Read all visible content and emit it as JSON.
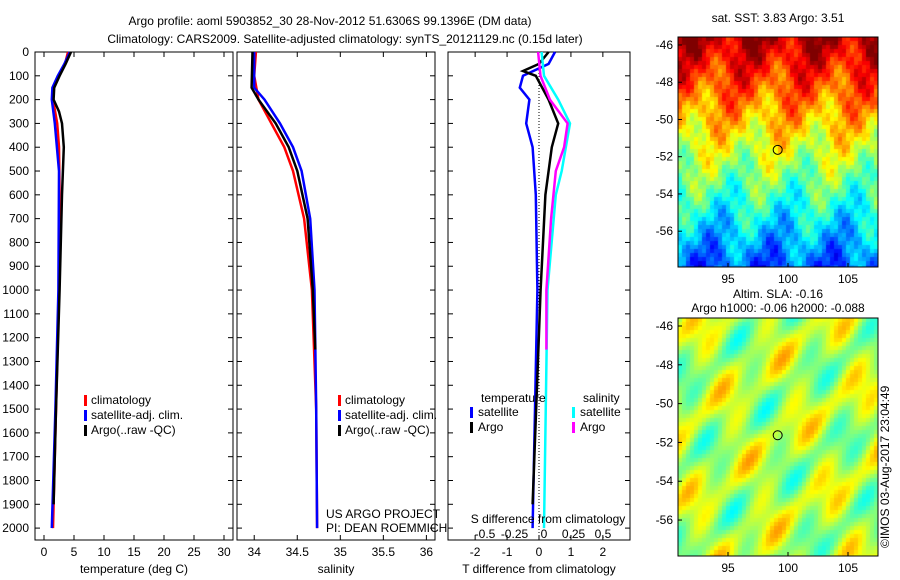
{
  "title_line1": "Argo profile: aoml 5903852_30 28-Nov-2012 51.6306S 99.1396E (DM data)",
  "title_line2": "Climatology: CARS2009. Satellite-adjusted climatology: synTS_20121129.nc (0.15d later)",
  "chart_data": [
    {
      "type": "line",
      "name": "temperature",
      "xlabel": "temperature (deg C)",
      "xlim": [
        -1.5,
        31.5
      ],
      "ylim": [
        0,
        2050
      ],
      "xticks": [
        "0",
        "5",
        "10",
        "15",
        "20",
        "25",
        "30"
      ],
      "yticks": [
        "0",
        "100",
        "200",
        "300",
        "400",
        "500",
        "600",
        "700",
        "800",
        "900",
        "1000",
        "1100",
        "1200",
        "1300",
        "1400",
        "1500",
        "1600",
        "1700",
        "1800",
        "1900",
        "2000"
      ],
      "legend": [
        "climatology",
        "satellite-adj. clim.",
        "Argo(..raw -QC)"
      ],
      "series": [
        {
          "name": "climatology",
          "color": "#ff0000",
          "depth": [
            0,
            50,
            100,
            150,
            200,
            300,
            400,
            600,
            1000,
            1500,
            2000
          ],
          "values": [
            4.0,
            3.5,
            2.5,
            1.6,
            1.5,
            2.2,
            2.5,
            2.6,
            2.5,
            2.0,
            1.5
          ]
        },
        {
          "name": "satellite-adj. clim.",
          "color": "#0000ff",
          "depth": [
            0,
            50,
            100,
            150,
            200,
            300,
            500,
            1000,
            1500,
            2000
          ],
          "values": [
            4.3,
            3.4,
            2.3,
            1.4,
            1.3,
            1.8,
            2.5,
            2.4,
            1.9,
            1.3
          ]
        },
        {
          "name": "Argo(..raw -QC)",
          "color": "#000000",
          "depth": [
            0,
            50,
            100,
            150,
            200,
            250,
            300,
            400,
            600,
            1000,
            1500,
            1900
          ],
          "values": [
            4.5,
            3.6,
            2.6,
            1.7,
            1.6,
            2.5,
            3.0,
            3.3,
            3.0,
            2.6,
            2.0,
            1.6
          ]
        }
      ]
    },
    {
      "type": "line",
      "name": "salinity",
      "xlabel": "salinity",
      "xlim": [
        33.8,
        36.1
      ],
      "ylim": [
        0,
        2050
      ],
      "xticks": [
        "34",
        "34.5",
        "35",
        "35.5",
        "36"
      ],
      "legend": [
        "climatology",
        "satellite-adj. clim.",
        "Argo(..raw -QC)"
      ],
      "annotation": [
        "US ARGO PROJECT",
        "PI: DEAN ROEMMICH"
      ],
      "series": [
        {
          "name": "climatology",
          "color": "#ff0000",
          "depth": [
            0,
            100,
            200,
            300,
            400,
            500,
            700,
            1000,
            1500,
            2000
          ],
          "values": [
            34.02,
            34.0,
            34.05,
            34.2,
            34.35,
            34.45,
            34.58,
            34.67,
            34.72,
            34.73
          ]
        },
        {
          "name": "satellite-adj. clim.",
          "color": "#0000ff",
          "depth": [
            0,
            150,
            200,
            300,
            400,
            500,
            700,
            1000,
            1500,
            2000
          ],
          "values": [
            34.0,
            34.0,
            34.12,
            34.3,
            34.45,
            34.55,
            34.65,
            34.7,
            34.72,
            34.73
          ]
        },
        {
          "name": "Argo(..raw -QC)",
          "color": "#000000",
          "depth": [
            0,
            150,
            200,
            300,
            400,
            500,
            700,
            1000,
            1250
          ],
          "values": [
            33.98,
            33.97,
            34.05,
            34.25,
            34.4,
            34.5,
            34.62,
            34.68,
            34.71
          ]
        }
      ]
    },
    {
      "type": "line",
      "name": "differences",
      "xlabel": "T difference from climatology",
      "x2label": "S difference from climatology",
      "xlim": [
        -2.85,
        2.85
      ],
      "x2lim": [
        -0.5,
        0.5
      ],
      "ylim": [
        0,
        2050
      ],
      "xticks": [
        "-2",
        "-1",
        "0",
        "1",
        "2"
      ],
      "x2ticks": [
        "-0.5",
        "-0.25",
        "0",
        "0.25",
        "0.5"
      ],
      "legend": {
        "temperature_title": "temperature",
        "salinity_title": "salinity",
        "items": [
          "satellite",
          "Argo",
          "satellite",
          "Argo"
        ]
      },
      "series": [
        {
          "name": "temperature satellite",
          "color": "#0000ff",
          "axis": "T",
          "depth": [
            0,
            50,
            100,
            150,
            200,
            300,
            400,
            600,
            1000,
            2000
          ],
          "values": [
            0.5,
            0.3,
            -0.5,
            -0.6,
            -0.3,
            -0.4,
            -0.2,
            -0.1,
            -0.05,
            -0.2
          ]
        },
        {
          "name": "temperature Argo",
          "color": "#000000",
          "axis": "T",
          "depth": [
            0,
            50,
            80,
            100,
            200,
            300,
            400,
            500,
            600,
            1000,
            1900
          ],
          "values": [
            0.3,
            0.0,
            -0.5,
            -0.1,
            0.3,
            0.6,
            0.4,
            0.3,
            0.2,
            0.05,
            -0.2
          ]
        },
        {
          "name": "salinity satellite",
          "color": "#00ffff",
          "axis": "S",
          "depth": [
            0,
            100,
            200,
            300,
            500,
            600,
            1000,
            2000
          ],
          "values": [
            -0.02,
            0.0,
            0.12,
            0.22,
            0.15,
            0.1,
            0.03,
            0.0
          ]
        },
        {
          "name": "salinity Argo",
          "color": "#ff00ff",
          "axis": "S",
          "depth": [
            0,
            100,
            200,
            300,
            400,
            500,
            700,
            1000,
            1250
          ],
          "values": [
            -0.05,
            -0.03,
            0.05,
            0.2,
            0.17,
            0.1,
            0.06,
            0.02,
            0.02
          ]
        }
      ]
    },
    {
      "type": "heatmap",
      "name": "sst-map",
      "title": "sat. SST: 3.83 Argo: 3.51",
      "xticks": [
        "95",
        "100",
        "105"
      ],
      "yticks": [
        "-46",
        "-48",
        "-50",
        "-52",
        "-54",
        "-56"
      ],
      "marker": {
        "lon": 99.14,
        "lat": -51.63
      }
    },
    {
      "type": "heatmap",
      "name": "sla-map",
      "title": [
        "Altim. SLA: -0.16",
        "Argo h1000: -0.06 h2000: -0.088"
      ],
      "xticks": [
        "95",
        "100",
        "105"
      ],
      "yticks": [
        "-46",
        "-48",
        "-50",
        "-52",
        "-54",
        "-56"
      ],
      "marker": {
        "lon": 99.14,
        "lat": -51.63
      }
    }
  ],
  "credit": "©IMOS 03-Aug-2017 23:04:49"
}
